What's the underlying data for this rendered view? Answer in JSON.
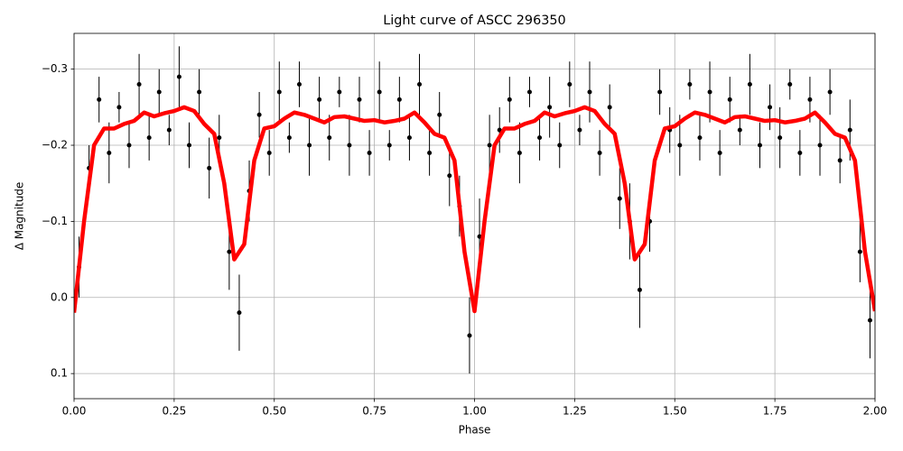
{
  "chart_data": {
    "type": "scatter",
    "title": "Light curve of ASCC 296350",
    "x_label": "Phase",
    "y_label": "Δ Magnitude",
    "xlim": [
      0,
      2
    ],
    "ylim": [
      0.133,
      -0.347
    ],
    "xticks": [
      {
        "value": 0,
        "label": "0.00"
      },
      0.25,
      {
        "value": 0.5,
        "label": "0.50"
      },
      0.75,
      {
        "value": 1,
        "label": "1.00"
      },
      1.25,
      {
        "value": 1.5,
        "label": "1.50"
      },
      1.75,
      {
        "value": 2,
        "label": "2.00"
      }
    ],
    "yticks": [
      {
        "value": -0.3,
        "label": "−0.3"
      },
      {
        "value": -0.2,
        "label": "−0.2"
      },
      {
        "value": -0.1,
        "label": "−0.1"
      },
      {
        "value": 0,
        "label": "0.0"
      },
      0.1
    ],
    "grid": true,
    "points": {
      "color": "#000000",
      "x": [
        0.0125,
        0.0375,
        0.0625,
        0.0875,
        0.1125,
        0.1375,
        0.1625,
        0.1875,
        0.2125,
        0.2375,
        0.2625,
        0.2875,
        0.3125,
        0.3375,
        0.3625,
        0.3875,
        0.4125,
        0.4375,
        0.4625,
        0.4875,
        0.5125,
        0.5375,
        0.5625,
        0.5875,
        0.6125,
        0.6375,
        0.6625,
        0.6875,
        0.7125,
        0.7375,
        0.7625,
        0.7875,
        0.8125,
        0.8375,
        0.8625,
        0.8875,
        0.9125,
        0.9375,
        0.9625,
        0.9875,
        1.0125,
        1.0375,
        1.0625,
        1.0875,
        1.1125,
        1.1375,
        1.1625,
        1.1875,
        1.2125,
        1.2375,
        1.2625,
        1.2875,
        1.3125,
        1.3375,
        1.3625,
        1.3875,
        1.4125,
        1.4375,
        1.4625,
        1.4875,
        1.5125,
        1.5375,
        1.5625,
        1.5875,
        1.6125,
        1.6375,
        1.6625,
        1.6875,
        1.7125,
        1.7375,
        1.7625,
        1.7875,
        1.8125,
        1.8375,
        1.8625,
        1.8875,
        1.9125,
        1.9375,
        1.9625,
        1.9875
      ],
      "y": [
        -0.04,
        -0.17,
        -0.26,
        -0.19,
        -0.25,
        -0.2,
        -0.28,
        -0.21,
        -0.27,
        -0.22,
        -0.29,
        -0.2,
        -0.27,
        -0.17,
        -0.21,
        -0.06,
        0.02,
        -0.14,
        -0.24,
        -0.19,
        -0.27,
        -0.21,
        -0.28,
        -0.2,
        -0.26,
        -0.21,
        -0.27,
        -0.2,
        -0.26,
        -0.19,
        -0.27,
        -0.2,
        -0.26,
        -0.21,
        -0.28,
        -0.19,
        -0.24,
        -0.16,
        -0.12,
        0.05,
        -0.08,
        -0.2,
        -0.22,
        -0.26,
        -0.19,
        -0.27,
        -0.21,
        -0.25,
        -0.2,
        -0.28,
        -0.22,
        -0.27,
        -0.19,
        -0.25,
        -0.13,
        -0.1,
        -0.01,
        -0.1,
        -0.27,
        -0.22,
        -0.2,
        -0.28,
        -0.21,
        -0.27,
        -0.19,
        -0.26,
        -0.22,
        -0.28,
        -0.2,
        -0.25,
        -0.21,
        -0.28,
        -0.19,
        -0.26,
        -0.2,
        -0.27,
        -0.18,
        -0.22,
        -0.06,
        0.03
      ],
      "errors": [
        0.04,
        0.03,
        0.03,
        0.04,
        0.02,
        0.03,
        0.04,
        0.03,
        0.03,
        0.02,
        0.04,
        0.03,
        0.03,
        0.04,
        0.03,
        0.05,
        0.05,
        0.04,
        0.03,
        0.03,
        0.04,
        0.02,
        0.03,
        0.04,
        0.03,
        0.03,
        0.02,
        0.04,
        0.03,
        0.03,
        0.04,
        0.02,
        0.03,
        0.03,
        0.04,
        0.03,
        0.03,
        0.04,
        0.04,
        0.05,
        0.05,
        0.04,
        0.03,
        0.03,
        0.04,
        0.02,
        0.03,
        0.04,
        0.03,
        0.03,
        0.02,
        0.04,
        0.03,
        0.03,
        0.04,
        0.05,
        0.05,
        0.04,
        0.03,
        0.03,
        0.04,
        0.02,
        0.03,
        0.04,
        0.03,
        0.03,
        0.02,
        0.04,
        0.03,
        0.03,
        0.04,
        0.02,
        0.03,
        0.03,
        0.04,
        0.03,
        0.03,
        0.04,
        0.04,
        0.05
      ]
    },
    "curve": {
      "color": "#ff0000",
      "x": [
        0,
        0.025,
        0.05,
        0.075,
        0.1,
        0.125,
        0.15,
        0.175,
        0.2,
        0.225,
        0.25,
        0.275,
        0.3,
        0.325,
        0.35,
        0.375,
        0.4,
        0.425,
        0.45,
        0.475,
        0.5,
        0.525,
        0.55,
        0.575,
        0.6,
        0.625,
        0.65,
        0.675,
        0.7,
        0.725,
        0.75,
        0.775,
        0.8,
        0.825,
        0.85,
        0.875,
        0.9,
        0.925,
        0.95,
        0.975,
        1,
        1.025,
        1.05,
        1.075,
        1.1,
        1.125,
        1.15,
        1.175,
        1.2,
        1.225,
        1.25,
        1.275,
        1.3,
        1.325,
        1.35,
        1.375,
        1.4,
        1.425,
        1.45,
        1.475,
        1.5,
        1.525,
        1.55,
        1.575,
        1.6,
        1.625,
        1.65,
        1.675,
        1.7,
        1.725,
        1.75,
        1.775,
        1.8,
        1.825,
        1.85,
        1.875,
        1.9,
        1.925,
        1.95,
        1.975,
        2
      ],
      "y": [
        0.02,
        -0.1,
        -0.2,
        -0.222,
        -0.222,
        -0.228,
        -0.232,
        -0.243,
        -0.238,
        -0.242,
        -0.245,
        -0.25,
        -0.245,
        -0.228,
        -0.215,
        -0.15,
        -0.05,
        -0.07,
        -0.18,
        -0.222,
        -0.225,
        -0.235,
        -0.243,
        -0.24,
        -0.235,
        -0.23,
        -0.237,
        -0.238,
        -0.235,
        -0.232,
        -0.233,
        -0.23,
        -0.232,
        -0.235,
        -0.243,
        -0.23,
        -0.215,
        -0.21,
        -0.18,
        -0.06,
        0.018,
        -0.1,
        -0.2,
        -0.222,
        -0.222,
        -0.228,
        -0.232,
        -0.243,
        -0.238,
        -0.242,
        -0.245,
        -0.25,
        -0.245,
        -0.228,
        -0.215,
        -0.15,
        -0.05,
        -0.07,
        -0.18,
        -0.222,
        -0.225,
        -0.235,
        -0.243,
        -0.24,
        -0.235,
        -0.23,
        -0.237,
        -0.238,
        -0.235,
        -0.232,
        -0.233,
        -0.23,
        -0.232,
        -0.235,
        -0.243,
        -0.23,
        -0.215,
        -0.21,
        -0.18,
        -0.06,
        0.018
      ]
    }
  }
}
